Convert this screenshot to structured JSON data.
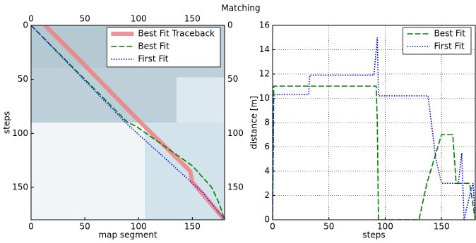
{
  "title": "Matching",
  "chart_data": [
    {
      "type": "line",
      "xlabel": "map segment",
      "ylabel": "steps",
      "xlim": [
        0,
        180
      ],
      "ylim": [
        180,
        0
      ],
      "xticks": [
        0,
        50,
        100,
        150
      ],
      "yticks": [
        0,
        50,
        100,
        150
      ],
      "grid": false,
      "legend": "upper right",
      "mirror_ticks": true,
      "series": [
        {
          "name": "Best Fit Traceback",
          "color": "#f08080",
          "style": "thick",
          "x": [
            13,
            48,
            100,
            148,
            150,
            180
          ],
          "values": [
            0,
            35,
            88,
            135,
            145,
            180
          ]
        },
        {
          "name": "Best Fit",
          "color": "#008000",
          "style": "dashed",
          "x": [
            0,
            3,
            90,
            97,
            150,
            168,
            175,
            180
          ],
          "values": [
            0,
            3,
            90,
            93,
            130,
            150,
            165,
            180
          ]
        },
        {
          "name": "First Fit",
          "color": "#0000ff",
          "style": "dotted",
          "x": [
            0,
            88,
            90,
            160,
            172,
            180
          ],
          "values": [
            0,
            90,
            92,
            155,
            170,
            180
          ]
        }
      ]
    },
    {
      "type": "line",
      "xlabel": "steps",
      "ylabel": "distance [m]",
      "xlim": [
        0,
        180
      ],
      "ylim": [
        0,
        16
      ],
      "xticks": [
        0,
        50,
        100,
        150
      ],
      "yticks": [
        0,
        2,
        4,
        6,
        8,
        10,
        12,
        14,
        16
      ],
      "grid": true,
      "legend": "upper right",
      "mirror_ticks": false,
      "series": [
        {
          "name": "Best Fit",
          "color": "#008000",
          "style": "dashed",
          "x": [
            0,
            1,
            92,
            93,
            94,
            130,
            137,
            150,
            160,
            163,
            175,
            180
          ],
          "values": [
            0,
            11,
            11,
            8,
            0,
            0,
            3,
            7,
            7,
            3,
            3,
            0
          ]
        },
        {
          "name": "First Fit",
          "color": "#0000ff",
          "style": "dotted",
          "x": [
            0,
            1,
            32,
            33,
            90,
            93,
            94,
            138,
            145,
            150,
            165,
            168,
            170,
            175,
            178,
            180
          ],
          "values": [
            0,
            10.3,
            10.3,
            11.9,
            11.9,
            15,
            10.2,
            10.2,
            5,
            3,
            3,
            5.5,
            0,
            2,
            3,
            0
          ]
        }
      ]
    }
  ]
}
